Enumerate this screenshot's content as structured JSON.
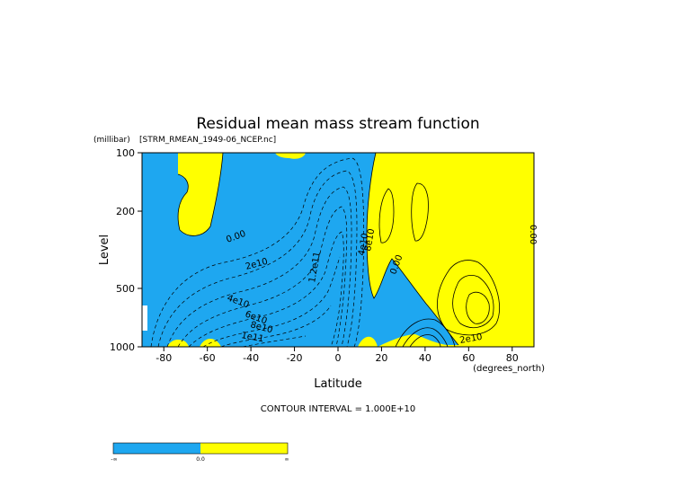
{
  "chart_data": {
    "type": "contour",
    "title": "Residual mean mass stream function",
    "subtitle": "[STRM_RMEAN_1949-06_NCEP.nc]",
    "xlabel": "Latitude",
    "x_units": "(degrees_north)",
    "ylabel": "Level",
    "y_units": "(millibar)",
    "x_range": [
      -90,
      90
    ],
    "y_range": [
      1000,
      100
    ],
    "y_scale": "log",
    "x_ticks": [
      -80,
      -60,
      -40,
      -20,
      0,
      20,
      40,
      60,
      80
    ],
    "y_ticks": [
      100,
      200,
      500,
      1000
    ],
    "contour_interval_text": "CONTOUR INTERVAL = 1.000E+10",
    "contour_labels": [
      "0.00",
      "2e10",
      "4e10",
      "6e10",
      "8e10",
      "1e11",
      "1.2e11",
      "0.00",
      "2e10",
      "0.00",
      "4e10",
      "8e10"
    ],
    "fill_colors": {
      "negative": "#1ea7f0",
      "positive": "#ffff00"
    },
    "colorbar": {
      "labels": [
        "-∞",
        "0.0",
        "∞"
      ],
      "colors": [
        "#1ea7f0",
        "#ffff00"
      ]
    }
  }
}
